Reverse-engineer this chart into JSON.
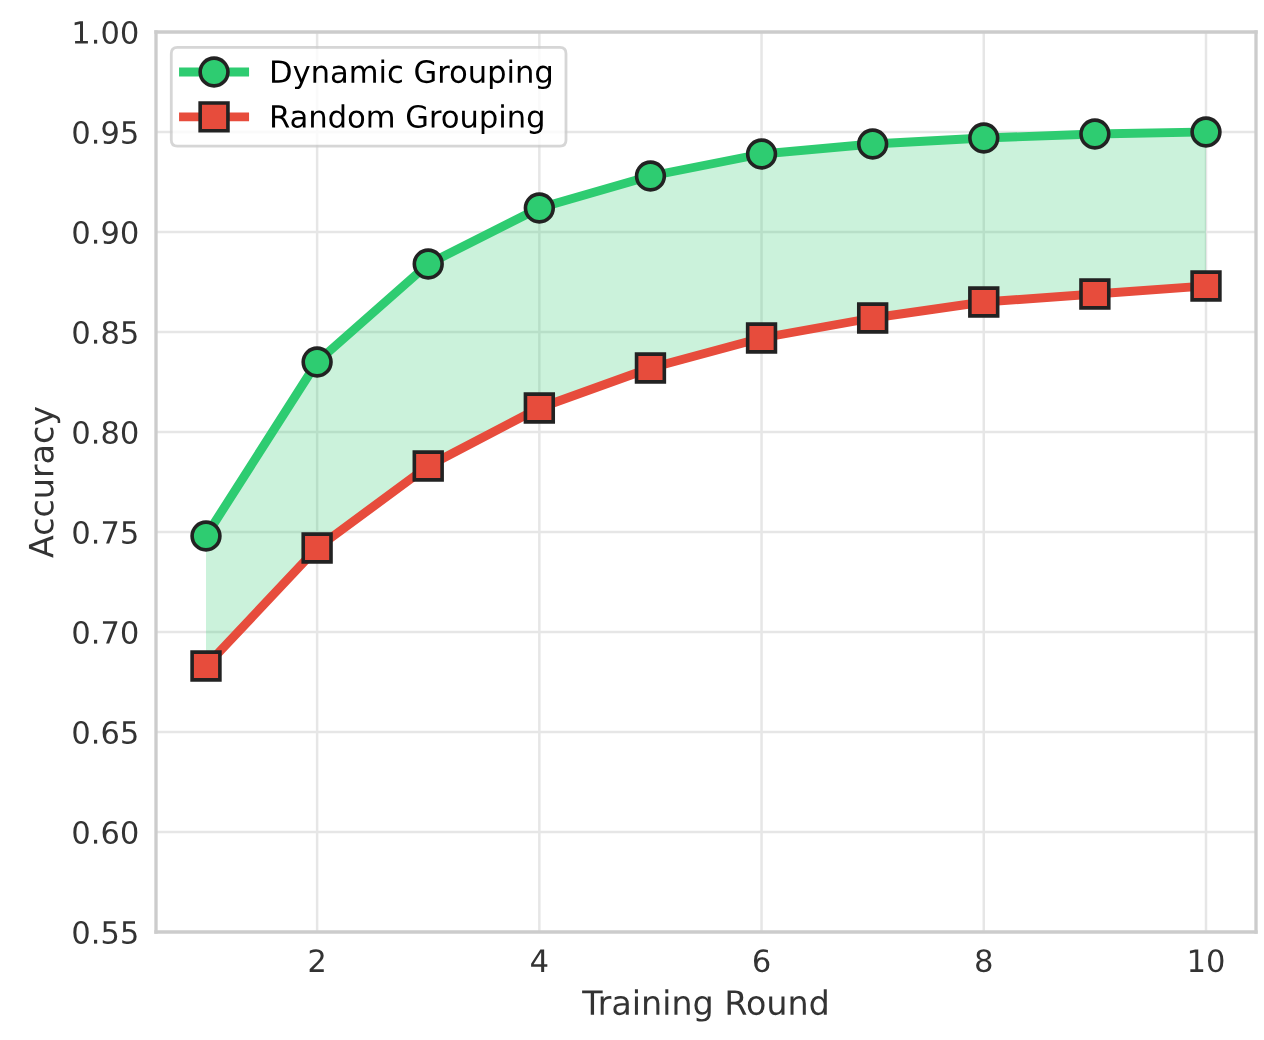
{
  "chart_data": {
    "type": "line",
    "xlabel": "Training Round",
    "ylabel": "Accuracy",
    "x": [
      1,
      2,
      3,
      4,
      5,
      6,
      7,
      8,
      9,
      10
    ],
    "series": [
      {
        "name": "Dynamic Grouping",
        "color": "#2ecc71",
        "marker": "circle",
        "values": [
          0.748,
          0.835,
          0.884,
          0.912,
          0.928,
          0.939,
          0.944,
          0.947,
          0.949,
          0.95
        ],
        "lower": [
          0.683,
          0.742,
          0.783,
          0.812,
          0.832,
          0.847,
          0.857,
          0.865,
          0.869,
          0.873
        ],
        "upper": [
          0.748,
          0.835,
          0.884,
          0.912,
          0.928,
          0.939,
          0.944,
          0.947,
          0.949,
          0.95
        ]
      },
      {
        "name": "Random Grouping",
        "color": "#e74c3c",
        "marker": "square",
        "values": [
          0.683,
          0.742,
          0.783,
          0.812,
          0.832,
          0.847,
          0.857,
          0.865,
          0.869,
          0.873
        ]
      }
    ],
    "xlim": [
      0.55,
      10.45
    ],
    "xticks": [
      2,
      4,
      6,
      8,
      10
    ],
    "ylim": [
      0.55,
      1.0
    ],
    "yticks": [
      {
        "value": 0.55,
        "label": "0.55"
      },
      {
        "value": 0.6,
        "label": "0.60"
      },
      {
        "value": 0.65,
        "label": "0.65"
      },
      {
        "value": 0.7,
        "label": "0.70"
      },
      {
        "value": 0.75,
        "label": "0.75"
      },
      {
        "value": 0.8,
        "label": "0.80"
      },
      {
        "value": 0.85,
        "label": "0.85"
      },
      {
        "value": 0.9,
        "label": "0.90"
      },
      {
        "value": 0.95,
        "label": "0.95"
      },
      {
        "value": 1.0,
        "label": "1.00"
      }
    ],
    "grid": true,
    "legend": "top left",
    "line_style": "solid"
  }
}
